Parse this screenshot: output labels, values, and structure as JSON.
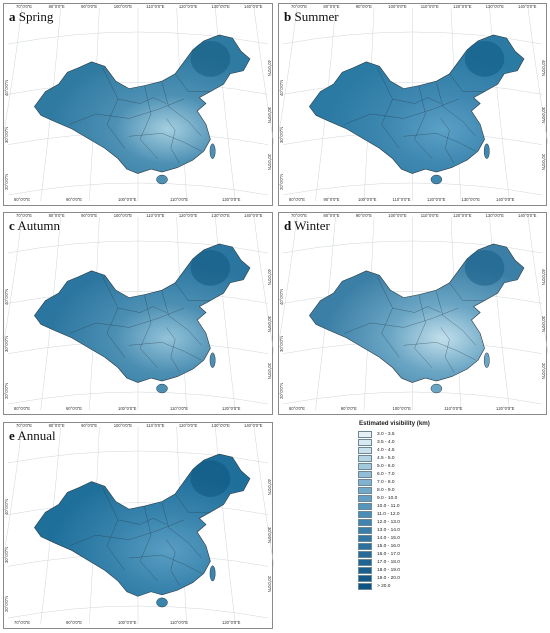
{
  "panels": [
    {
      "letter": "a",
      "title": "Spring",
      "base": "#2f7aa1",
      "light": "#a5cfe0",
      "mid": "#4d90b4",
      "dark": "#155c82",
      "top_ticks": [
        "70°0'0\"E",
        "80°0'0\"E",
        "90°0'0\"E",
        "100°0'0\"E",
        "110°0'0\"E",
        "120°0'0\"E",
        "130°0'0\"E",
        "140°0'0\"E"
      ],
      "bottom_ticks": [
        "80°0'0\"E",
        "90°0'0\"E",
        "100°0'0\"E",
        "110°0'0\"E",
        "120°0'0\"E"
      ],
      "left_ticks": [
        "40°0'0\"N",
        "30°0'0\"N",
        "20°0'0\"N"
      ],
      "right_ticks": [
        "40°0'0\"N",
        "30°0'0\"N",
        "20°0'0\"N"
      ]
    },
    {
      "letter": "b",
      "title": "Summer",
      "base": "#2a7aa4",
      "light": "#5ca1c6",
      "mid": "#3f88b1",
      "dark": "#0f5a84",
      "top_ticks": [
        "70°0'0\"E",
        "80°0'0\"E",
        "90°0'0\"E",
        "100°0'0\"E",
        "110°0'0\"E",
        "120°0'0\"E",
        "130°0'0\"E",
        "140°0'0\"E"
      ],
      "bottom_ticks": [
        "80°0'0\"E",
        "90°0'0\"E",
        "100°0'0\"E",
        "110°0'0\"E",
        "120°0'0\"E",
        "130°0'0\"E",
        "140°0'0\"E"
      ],
      "left_ticks": [
        "40°0'0\"N",
        "30°0'0\"N",
        "20°0'0\"N"
      ],
      "right_ticks": [
        "40°0'0\"N",
        "30°0'0\"N",
        "20°0'0\"N"
      ]
    },
    {
      "letter": "c",
      "title": "Autumn",
      "base": "#2b76a0",
      "light": "#93c3d9",
      "mid": "#4c8fb3",
      "dark": "#135a82",
      "top_ticks": [
        "70°0'0\"E",
        "80°0'0\"E",
        "90°0'0\"E",
        "100°0'0\"E",
        "110°0'0\"E",
        "120°0'0\"E",
        "130°0'0\"E",
        "140°0'0\"E"
      ],
      "bottom_ticks": [
        "80°0'0\"E",
        "90°0'0\"E",
        "100°0'0\"E",
        "110°0'0\"E",
        "120°0'0\"E"
      ],
      "left_ticks": [
        "40°0'0\"N",
        "30°0'0\"N",
        "20°0'0\"N"
      ],
      "right_ticks": [
        "40°0'0\"N",
        "30°0'0\"N",
        "20°0'0\"N"
      ]
    },
    {
      "letter": "d",
      "title": "Winter",
      "base": "#3c7fa6",
      "light": "#c2dfeb",
      "mid": "#6aa5c4",
      "dark": "#175e86",
      "top_ticks": [
        "70°0'0\"E",
        "80°0'0\"E",
        "90°0'0\"E",
        "100°0'0\"E",
        "110°0'0\"E",
        "120°0'0\"E",
        "130°0'0\"E",
        "140°0'0\"E"
      ],
      "bottom_ticks": [
        "80°0'0\"E",
        "90°0'0\"E",
        "100°0'0\"E",
        "110°0'0\"E",
        "120°0'0\"E"
      ],
      "left_ticks": [
        "40°0'0\"N",
        "30°0'0\"N",
        "20°0'0\"N"
      ],
      "right_ticks": [
        "40°0'0\"N",
        "30°0'0\"N",
        "20°0'0\"N"
      ]
    },
    {
      "letter": "e",
      "title": "Annual",
      "base": "#1f6f9b",
      "light": "#5a9ec3",
      "mid": "#3a85ae",
      "dark": "#0e5680",
      "top_ticks": [
        "70°0'0\"E",
        "80°0'0\"E",
        "90°0'0\"E",
        "100°0'0\"E",
        "110°0'0\"E",
        "120°0'0\"E",
        "130°0'0\"E",
        "140°0'0\"E"
      ],
      "bottom_ticks": [
        "70°0'0\"E",
        "90°0'0\"E",
        "100°0'0\"E",
        "110°0'0\"E",
        "120°0'0\"E"
      ],
      "left_ticks": [
        "40°0'0\"N",
        "30°0'0\"N",
        "20°0'0\"N"
      ],
      "right_ticks": [
        "40°0'0\"N",
        "30°0'0\"N",
        "20°0'0\"N"
      ]
    }
  ],
  "legend": {
    "title": "Estimated visibility (km)",
    "items": [
      {
        "label": "3.0 - 3.5",
        "color": "#e6f1f6"
      },
      {
        "label": "3.5 - 4.0",
        "color": "#d7e9f1"
      },
      {
        "label": "4.0 - 4.5",
        "color": "#c8e0eb"
      },
      {
        "label": "4.5 - 5.0",
        "color": "#b5d4e3"
      },
      {
        "label": "5.0 - 6.0",
        "color": "#a2c8dc"
      },
      {
        "label": "6.0 - 7.0",
        "color": "#91bed6"
      },
      {
        "label": "7.0 - 8.0",
        "color": "#80b3cf"
      },
      {
        "label": "8.0 - 9.0",
        "color": "#70a9c9"
      },
      {
        "label": "9.0 - 10.0",
        "color": "#629fc3"
      },
      {
        "label": "10.0 - 11.0",
        "color": "#5596bd"
      },
      {
        "label": "11.0 - 12.0",
        "color": "#4a8db7"
      },
      {
        "label": "12.0 - 13.0",
        "color": "#4085b1"
      },
      {
        "label": "13.0 - 14.0",
        "color": "#377eab"
      },
      {
        "label": "14.0 - 15.0",
        "color": "#3077a6"
      },
      {
        "label": "15.0 - 16.0",
        "color": "#2a71a0"
      },
      {
        "label": "16.0 - 17.0",
        "color": "#246b9b"
      },
      {
        "label": "17.0 - 18.0",
        "color": "#1e6595"
      },
      {
        "label": "18.0 - 19.0",
        "color": "#185f8f"
      },
      {
        "label": "19.0 - 20.0",
        "color": "#12598a"
      },
      {
        "label": "> 20.0",
        "color": "#0b5383"
      }
    ]
  }
}
